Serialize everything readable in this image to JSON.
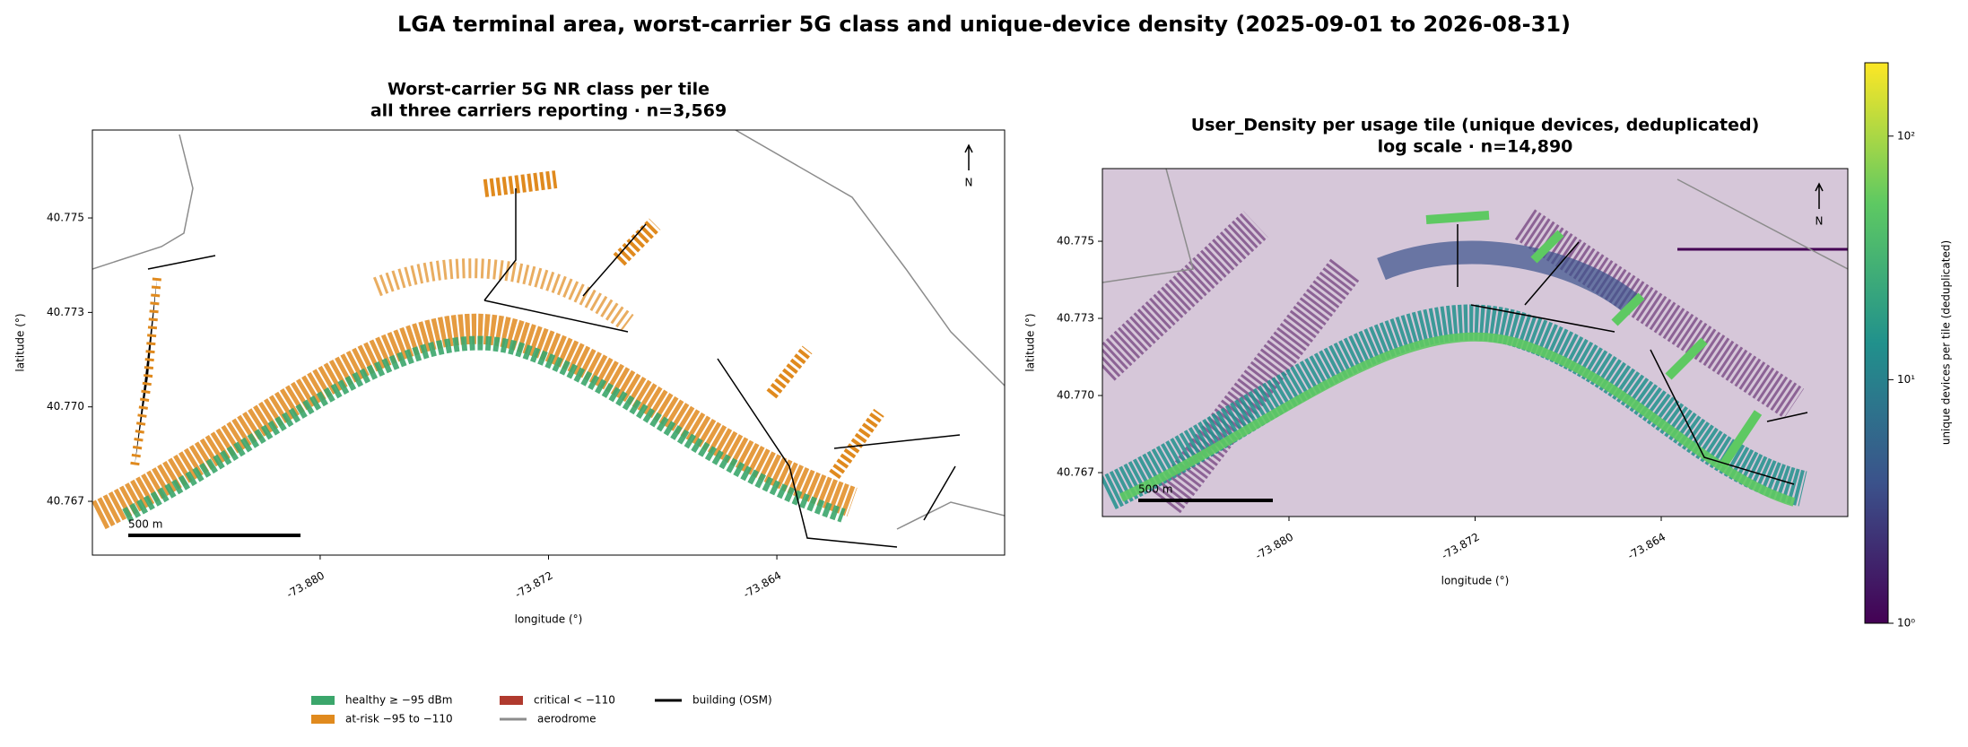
{
  "title": "LGA terminal area, worst-carrier 5G class and unique-device density (2025-09-01 to 2026-08-31)",
  "chart_data": [
    {
      "type": "map",
      "title": "Worst-carrier 5G NR class per tile",
      "subtitle": "all three carriers reporting · n=3,569",
      "xlabel": "longitude (°)",
      "ylabel": "latitude (°)",
      "xlim": [
        -73.88798,
        -73.85602
      ],
      "ylim": [
        40.76592,
        40.77762
      ],
      "xticks": [
        {
          "value": -73.88,
          "label": "-73.880"
        },
        {
          "value": -73.872,
          "label": "-73.872"
        },
        {
          "value": -73.864,
          "label": "-73.864"
        }
      ],
      "yticks": [
        {
          "value": 40.7752,
          "label": "40.775"
        },
        {
          "value": 40.7726,
          "label": "40.773"
        },
        {
          "value": 40.77,
          "label": "40.770"
        },
        {
          "value": 40.7674,
          "label": "40.767"
        }
      ],
      "scalebar": "500 m",
      "north": "N",
      "legend": [
        {
          "name": "healthy ≥ −95 dBm",
          "color": "#3ba66b",
          "kind": "patch"
        },
        {
          "name": "at-risk −95 to −110",
          "color": "#e08a1e",
          "kind": "patch"
        },
        {
          "name": "critical < −110",
          "color": "#b03a2e",
          "kind": "patch"
        },
        {
          "name": "aerodrome",
          "color": "#8c8c8c",
          "kind": "line"
        },
        {
          "name": "building (OSM)",
          "color": "#000000",
          "kind": "line"
        }
      ]
    },
    {
      "type": "heatmap",
      "title": "User_Density per usage tile (unique devices, deduplicated)",
      "subtitle": "log scale · n=14,890",
      "xlabel": "longitude (°)",
      "ylabel": "latitude (°)",
      "xlim": [
        -73.88802,
        -73.85598
      ],
      "ylim": [
        40.76592,
        40.77765
      ],
      "xticks": [
        {
          "value": -73.88,
          "label": "-73.880"
        },
        {
          "value": -73.872,
          "label": "-73.872"
        },
        {
          "value": -73.864,
          "label": "-73.864"
        }
      ],
      "yticks": [
        {
          "value": 40.7752,
          "label": "40.775"
        },
        {
          "value": 40.7726,
          "label": "40.773"
        },
        {
          "value": 40.77,
          "label": "40.770"
        },
        {
          "value": 40.7674,
          "label": "40.767"
        }
      ],
      "scalebar": "500 m",
      "north": "N",
      "colorbar": {
        "label": "unique devices per tile (deduplicated)",
        "scale": "log",
        "lim": [
          1,
          200
        ],
        "ticks": [
          {
            "value": 1,
            "label": "10⁰"
          },
          {
            "value": 10,
            "label": "10¹"
          },
          {
            "value": 100,
            "label": "10²"
          }
        ]
      }
    }
  ]
}
